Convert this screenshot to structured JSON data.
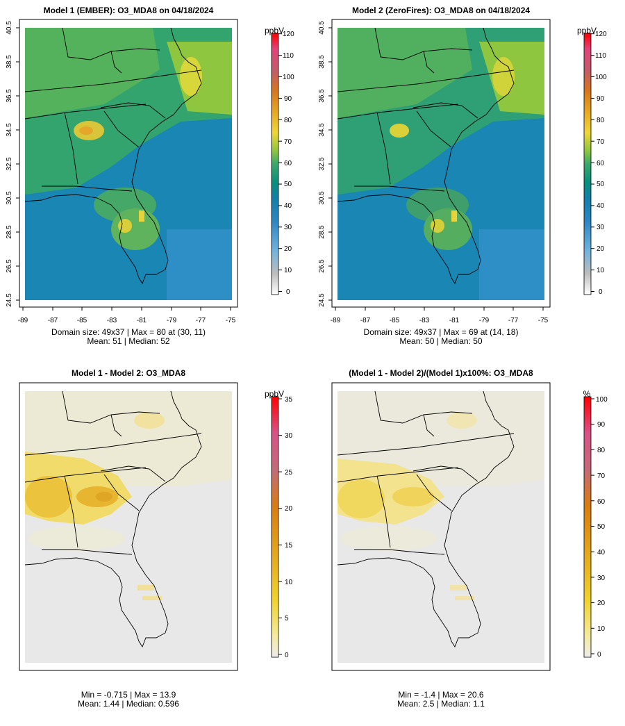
{
  "chart_data": [
    {
      "type": "heatmap",
      "panel": "top-left",
      "title": "Model 1 (EMBER): O3_MDA8 on 04/18/2024",
      "x_tick_labels": [
        "-89",
        "-87",
        "-85",
        "-83",
        "-81",
        "-79",
        "-77",
        "-75"
      ],
      "y_tick_labels": [
        "24.5",
        "26.5",
        "28.5",
        "30.5",
        "32.5",
        "34.5",
        "36.5",
        "38.5",
        "40.5"
      ],
      "xlim": [
        -89,
        -75
      ],
      "ylim": [
        24.5,
        40.5
      ],
      "colorbar": {
        "unit": "ppbV",
        "ticks": [
          "0",
          "10",
          "20",
          "30",
          "40",
          "50",
          "60",
          "70",
          "80",
          "90",
          "100",
          "110",
          "120"
        ]
      },
      "stats": [
        "Domain size: 49x37 | Max = 80 at (30, 11)",
        "Mean: 51 |  Median: 52"
      ]
    },
    {
      "type": "heatmap",
      "panel": "top-right",
      "title": "Model 2 (ZeroFires): O3_MDA8 on 04/18/2024",
      "x_tick_labels": [
        "-89",
        "-87",
        "-85",
        "-83",
        "-81",
        "-79",
        "-77",
        "-75"
      ],
      "y_tick_labels": [
        "24.5",
        "26.5",
        "28.5",
        "30.5",
        "32.5",
        "34.5",
        "36.5",
        "38.5",
        "40.5"
      ],
      "xlim": [
        -89,
        -75
      ],
      "ylim": [
        24.5,
        40.5
      ],
      "colorbar": {
        "unit": "ppbV",
        "ticks": [
          "0",
          "10",
          "20",
          "30",
          "40",
          "50",
          "60",
          "70",
          "80",
          "90",
          "100",
          "110",
          "120"
        ]
      },
      "stats": [
        "Domain size: 49x37 | Max = 69 at (14, 18)",
        "Mean: 50 |  Median: 50"
      ]
    },
    {
      "type": "heatmap",
      "panel": "bottom-left",
      "title": "Model 1 - Model 2: O3_MDA8",
      "colorbar": {
        "unit": "ppbV",
        "ticks": [
          "0",
          "5",
          "10",
          "15",
          "20",
          "25",
          "30",
          "35"
        ]
      },
      "stats": [
        "Min = -0.715 | Max = 13.9",
        "Mean: 1.44 |  Median: 0.596"
      ]
    },
    {
      "type": "heatmap",
      "panel": "bottom-right",
      "title": "(Model 1 - Model 2)/(Model 1)x100%: O3_MDA8",
      "colorbar": {
        "unit": "%",
        "ticks": [
          "0",
          "10",
          "20",
          "30",
          "40",
          "50",
          "60",
          "70",
          "80",
          "90",
          "100"
        ]
      },
      "stats": [
        "Min = -1.4 | Max = 20.6",
        "Mean: 2.5 |  Median: 1.1"
      ]
    }
  ],
  "colors": {
    "axis": "#000000",
    "diff_background": "#e6e6e6",
    "ozone_scale": [
      "#ffffff",
      "#d9d9d9",
      "#8fbcd6",
      "#3a8fcc",
      "#1f7fb4",
      "#0a8f7f",
      "#3aa86b",
      "#8cc63f",
      "#f0d53a",
      "#e9a72a",
      "#d9781f",
      "#c25a6a",
      "#e04070",
      "#ff0000"
    ],
    "diff_scale": [
      "#ececec",
      "#f5e9a0",
      "#f0d22e",
      "#e3a31c",
      "#d97c10",
      "#c46a78",
      "#d85288",
      "#ff0000"
    ]
  }
}
